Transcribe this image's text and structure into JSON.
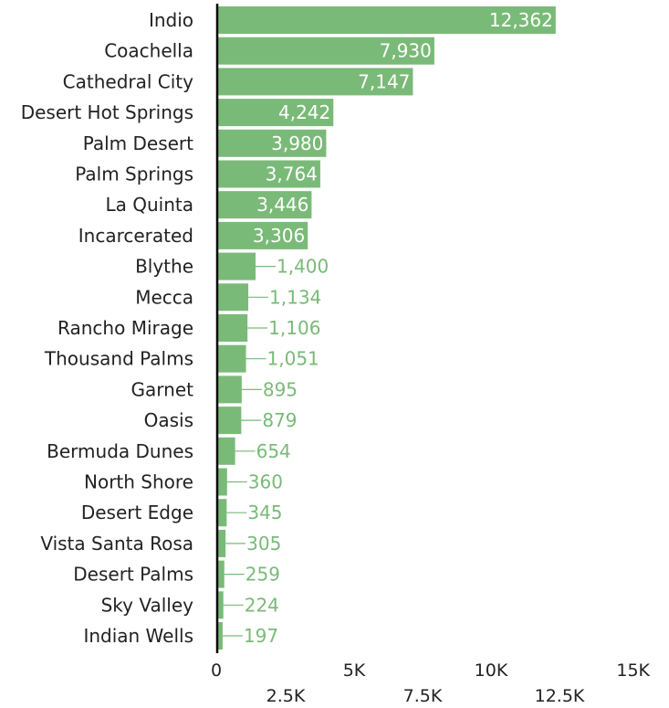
{
  "chart_data": {
    "type": "bar",
    "orientation": "horizontal",
    "categories": [
      "Indio",
      "Coachella",
      "Cathedral City",
      "Desert Hot Springs",
      "Palm Desert",
      "Palm Springs",
      "La Quinta",
      "Incarcerated",
      "Blythe",
      "Mecca",
      "Rancho Mirage",
      "Thousand Palms",
      "Garnet",
      "Oasis",
      "Bermuda Dunes",
      "North Shore",
      "Desert Edge",
      "Vista Santa Rosa",
      "Desert Palms",
      "Sky Valley",
      "Indian Wells"
    ],
    "values": [
      12362,
      7930,
      7147,
      4242,
      3980,
      3764,
      3446,
      3306,
      1400,
      1134,
      1106,
      1051,
      895,
      879,
      654,
      360,
      345,
      305,
      259,
      224,
      197
    ],
    "value_labels": [
      "12,362",
      "7,930",
      "7,147",
      "4,242",
      "3,980",
      "3,764",
      "3,446",
      "3,306",
      "1,400",
      "1,134",
      "1,106",
      "1,051",
      "895",
      "879",
      "654",
      "360",
      "345",
      "305",
      "259",
      "224",
      "197"
    ],
    "xlim": [
      0,
      15000
    ],
    "x_ticks": [
      0,
      2500,
      5000,
      7500,
      10000,
      12500,
      15000
    ],
    "x_tick_labels": [
      "0",
      "2.5K",
      "5K",
      "7.5K",
      "10K",
      "12.5K",
      "15K"
    ],
    "grid": false,
    "colors": {
      "bar": "#7aba78",
      "label_outside": "#7aba78",
      "label_inside": "#ffffff",
      "axis": "#000000"
    }
  }
}
